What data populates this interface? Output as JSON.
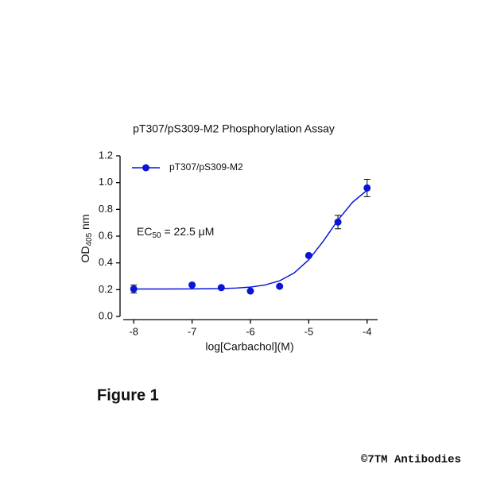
{
  "chart_data": {
    "type": "scatter",
    "title": "pT307/pS309-M2 Phosphorylation Assay",
    "x_label": "log[Carbachol](M)",
    "y_label": {
      "text": "OD",
      "subscript": "405",
      "rest": " nm"
    },
    "annotation": {
      "text": "EC",
      "subscript": "50",
      "rest": " = 22.5 μM"
    },
    "x": [
      -8,
      -7,
      -6.5,
      -6,
      -5.5,
      -5,
      -4.5,
      -4
    ],
    "series": [
      {
        "name": "pT307/pS309-M2",
        "color": "#0a14d8",
        "values": [
          0.205,
          0.235,
          0.215,
          0.19,
          0.225,
          0.455,
          0.705,
          0.96
        ],
        "errors": [
          0.03,
          0.01,
          0.01,
          0.01,
          0.01,
          0.01,
          0.05,
          0.065
        ]
      }
    ],
    "fit": {
      "x": [
        -8,
        -7.5,
        -7,
        -6.5,
        -6.25,
        -6,
        -5.75,
        -5.5,
        -5.25,
        -5,
        -4.75,
        -4.5,
        -4.25,
        -4
      ],
      "values": [
        0.205,
        0.205,
        0.206,
        0.208,
        0.212,
        0.219,
        0.235,
        0.266,
        0.325,
        0.423,
        0.563,
        0.72,
        0.853,
        0.943
      ]
    },
    "xlim": [
      -8.18,
      -3.82
    ],
    "xticks": [
      -8,
      -7,
      -6,
      -5,
      -4
    ],
    "ylim": [
      0,
      1.2
    ],
    "yticks": [
      {
        "value": 0,
        "label": "0.0"
      },
      {
        "value": 0.2,
        "label": "0.2"
      },
      {
        "value": 0.4,
        "label": "0.4"
      },
      {
        "value": 0.6,
        "label": "0.6"
      },
      {
        "value": 0.8,
        "label": "0.8"
      },
      {
        "value": 1.0,
        "label": "1.0"
      },
      {
        "value": 1.2,
        "label": "1.2"
      }
    ],
    "legend": "upper left"
  },
  "figure_label": "Figure 1",
  "watermark": "©7TM Antibodies"
}
